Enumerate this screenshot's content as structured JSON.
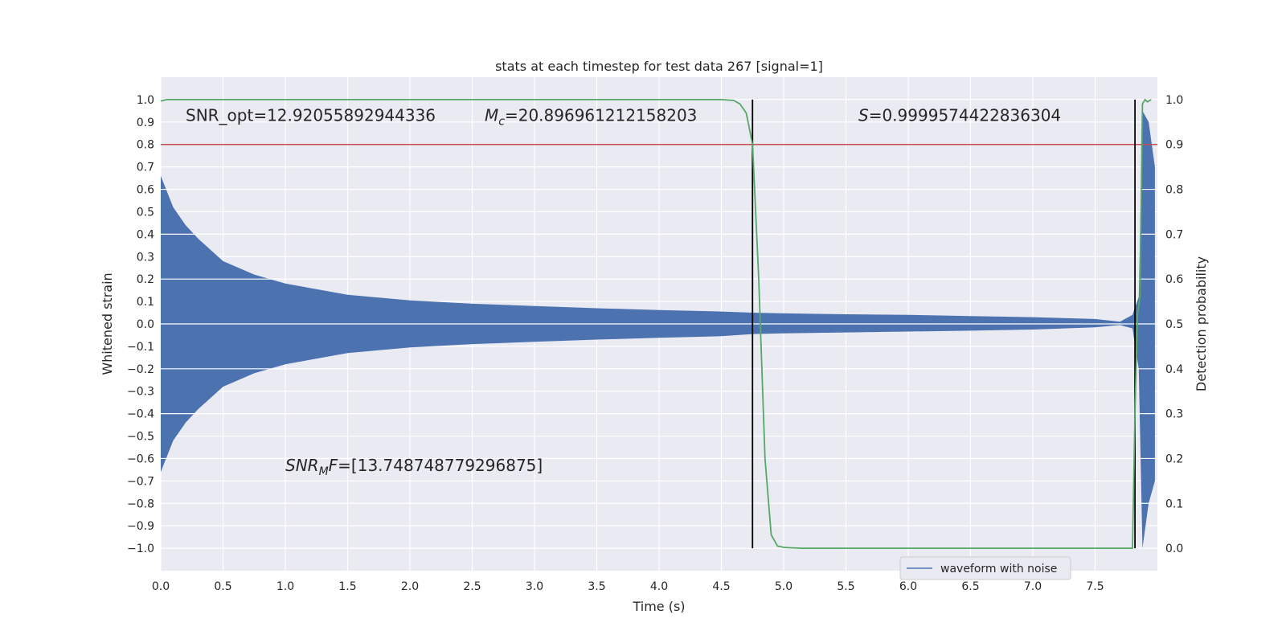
{
  "chart_data": {
    "type": "line",
    "title": "stats at each timestep for test data 267 [signal=1]",
    "xlabel": "Time (s)",
    "ylabel": "Whitened strain",
    "y2label": "Detection probability",
    "xlim": [
      0.0,
      8.0
    ],
    "ylim": [
      -1.1,
      1.1
    ],
    "y2lim": [
      -0.05,
      1.05
    ],
    "xticks": [
      0.0,
      0.5,
      1.0,
      1.5,
      2.0,
      2.5,
      3.0,
      3.5,
      4.0,
      4.5,
      5.0,
      5.5,
      6.0,
      6.5,
      7.0,
      7.5
    ],
    "yticks": [
      1.0,
      0.9,
      0.8,
      0.7,
      0.6,
      0.5,
      0.4,
      0.3,
      0.2,
      0.1,
      0.0,
      -0.1,
      -0.2,
      -0.3,
      -0.4,
      -0.5,
      -0.6,
      -0.7,
      -0.8,
      -0.9,
      -1.0
    ],
    "y2ticks": [
      1.0,
      0.9,
      0.8,
      0.7,
      0.6,
      0.5,
      0.4,
      0.3,
      0.2,
      0.1,
      0.0
    ],
    "grid": true,
    "legend": {
      "placement": "lower-right",
      "entries": [
        "waveform with noise"
      ]
    },
    "series": [
      {
        "name": "waveform with noise",
        "kind": "envelope",
        "color": "#4c72b0",
        "x": [
          0.0,
          0.1,
          0.2,
          0.3,
          0.5,
          0.75,
          1.0,
          1.5,
          2.0,
          2.5,
          3.0,
          3.5,
          4.0,
          4.5,
          4.75,
          5.0,
          5.5,
          6.0,
          6.5,
          7.0,
          7.5,
          7.7,
          7.8,
          7.85,
          7.88,
          7.93,
          7.98
        ],
        "upper": [
          0.66,
          0.52,
          0.44,
          0.38,
          0.28,
          0.22,
          0.18,
          0.13,
          0.105,
          0.09,
          0.08,
          0.07,
          0.062,
          0.055,
          0.05,
          0.047,
          0.043,
          0.04,
          0.035,
          0.03,
          0.022,
          0.01,
          0.04,
          0.12,
          0.95,
          0.9,
          0.7
        ],
        "lower": [
          -0.66,
          -0.52,
          -0.44,
          -0.38,
          -0.28,
          -0.22,
          -0.18,
          -0.13,
          -0.105,
          -0.09,
          -0.08,
          -0.07,
          -0.062,
          -0.055,
          -0.045,
          -0.042,
          -0.038,
          -0.034,
          -0.03,
          -0.025,
          -0.015,
          -0.005,
          -0.02,
          -0.2,
          -1.0,
          -0.8,
          -0.7
        ]
      },
      {
        "name": "",
        "kind": "probability",
        "axis": "right",
        "color": "#55a868",
        "x": [
          0.0,
          0.05,
          0.5,
          1.0,
          2.0,
          3.0,
          4.0,
          4.5,
          4.6,
          4.65,
          4.7,
          4.75,
          4.8,
          4.85,
          4.9,
          4.95,
          5.0,
          5.05,
          5.15,
          5.5,
          6.0,
          7.0,
          7.5,
          7.8,
          7.82,
          7.84,
          7.86,
          7.88,
          7.9,
          7.92,
          7.95
        ],
        "values": [
          0.997,
          1.0,
          1.0,
          1.0,
          1.0,
          1.0,
          1.0,
          1.0,
          0.998,
          0.99,
          0.97,
          0.9,
          0.6,
          0.2,
          0.03,
          0.005,
          0.002,
          0.001,
          0.0,
          0.0,
          0.0,
          0.0,
          0.0,
          0.0,
          0.3,
          0.52,
          0.56,
          0.99,
          1.0,
          0.995,
          1.0
        ]
      }
    ],
    "threshold": {
      "axis": "right",
      "value": 0.9,
      "color": "#c44e52"
    },
    "vlines": [
      4.75,
      7.82
    ],
    "annotations": [
      {
        "text": "SNR_opt=12.92055892944336",
        "x": 0.2,
        "y": 0.93
      },
      {
        "prefix": "M",
        "sub": "c",
        "text": "=20.896961212158203",
        "x": 2.6,
        "y": 0.93
      },
      {
        "prefix": "S",
        "sub": "",
        "text": "=0.9999574422836304",
        "x": 5.6,
        "y": 0.93
      },
      {
        "prefix": "SNR",
        "sub": "M",
        "suffix": "F",
        "text": "=[13.748748779296875]",
        "x": 1.0,
        "y": -0.63
      }
    ]
  }
}
